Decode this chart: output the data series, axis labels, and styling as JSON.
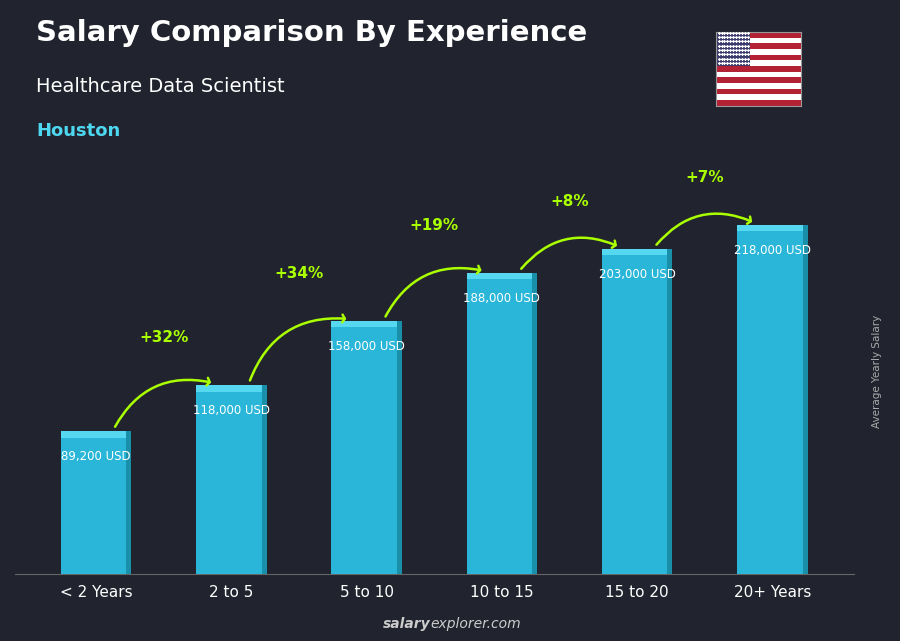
{
  "title_line1": "Salary Comparison By Experience",
  "subtitle_line1": "Healthcare Data Scientist",
  "subtitle_line2": "Houston",
  "categories": [
    "< 2 Years",
    "2 to 5",
    "5 to 10",
    "10 to 15",
    "15 to 20",
    "20+ Years"
  ],
  "values": [
    89200,
    118000,
    158000,
    188000,
    203000,
    218000
  ],
  "value_labels": [
    "89,200 USD",
    "118,000 USD",
    "158,000 USD",
    "188,000 USD",
    "203,000 USD",
    "218,000 USD"
  ],
  "pct_changes": [
    null,
    "+32%",
    "+34%",
    "+19%",
    "+8%",
    "+7%"
  ],
  "bar_color_body": "#29b6d8",
  "bar_color_top": "#55d8f0",
  "bar_color_dark": "#1a8faa",
  "title_color": "#ffffff",
  "subtitle_color": "#ffffff",
  "houston_color": "#4dd8f0",
  "value_label_color": "#ffffff",
  "pct_color": "#aaff00",
  "xlabel_color": "#ffffff",
  "watermark_bold": "salary",
  "watermark_normal": "explorer.com",
  "ylabel_text": "Average Yearly Salary",
  "bar_width": 0.52,
  "ylim_max": 265000
}
